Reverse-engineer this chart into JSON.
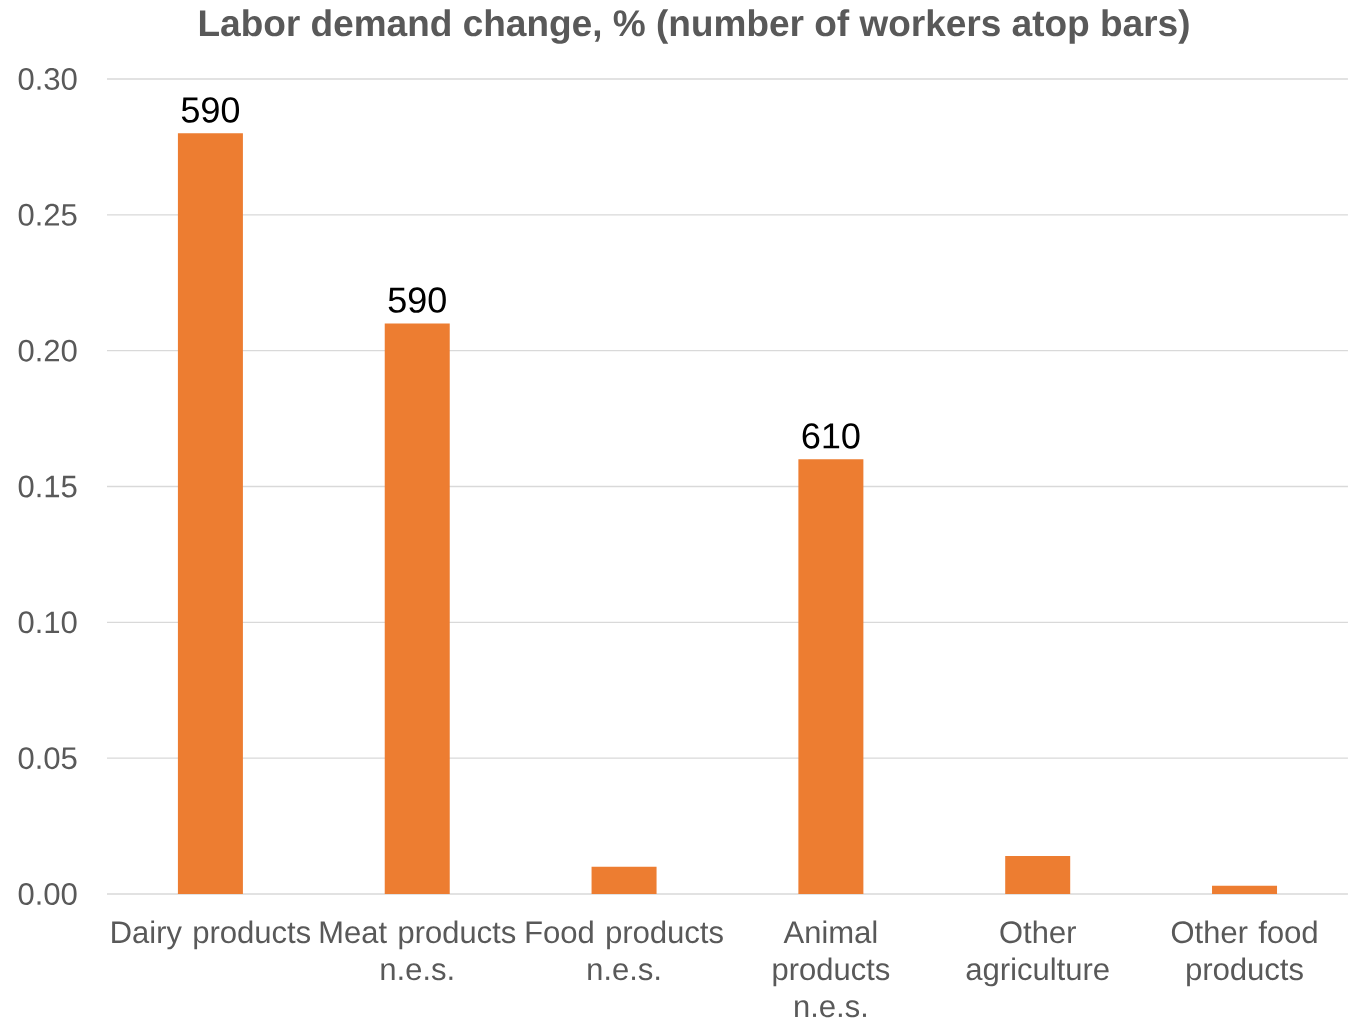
{
  "chart_data": {
    "type": "bar",
    "title": "Labor demand change, % (number of workers atop bars)",
    "categories": [
      "Dairy products",
      "Meat products n.e.s.",
      "Food products n.e.s.",
      "Animal products n.e.s.",
      "Other agriculture",
      "Other food products"
    ],
    "values": [
      0.28,
      0.21,
      0.01,
      0.16,
      0.014,
      0.003
    ],
    "color": "#ed7d31",
    "ylim": [
      0,
      0.3
    ],
    "yticks": [
      {
        "value": 0,
        "label": "0.00"
      },
      {
        "value": 0.05,
        "label": "0.05"
      },
      {
        "value": 0.1,
        "label": "0.10"
      },
      {
        "value": 0.15,
        "label": "0.15"
      },
      {
        "value": 0.2,
        "label": "0.20"
      },
      {
        "value": 0.25,
        "label": "0.25"
      },
      {
        "value": 0.3,
        "label": "0.30"
      }
    ],
    "grid": "y",
    "annotations": [
      {
        "text": "590",
        "x": "Dairy products",
        "y": 0.28
      },
      {
        "text": "590",
        "x": "Meat products n.e.s.",
        "y": 0.21
      },
      {
        "text": "610",
        "x": "Animal products n.e.s.",
        "y": 0.16
      }
    ]
  }
}
